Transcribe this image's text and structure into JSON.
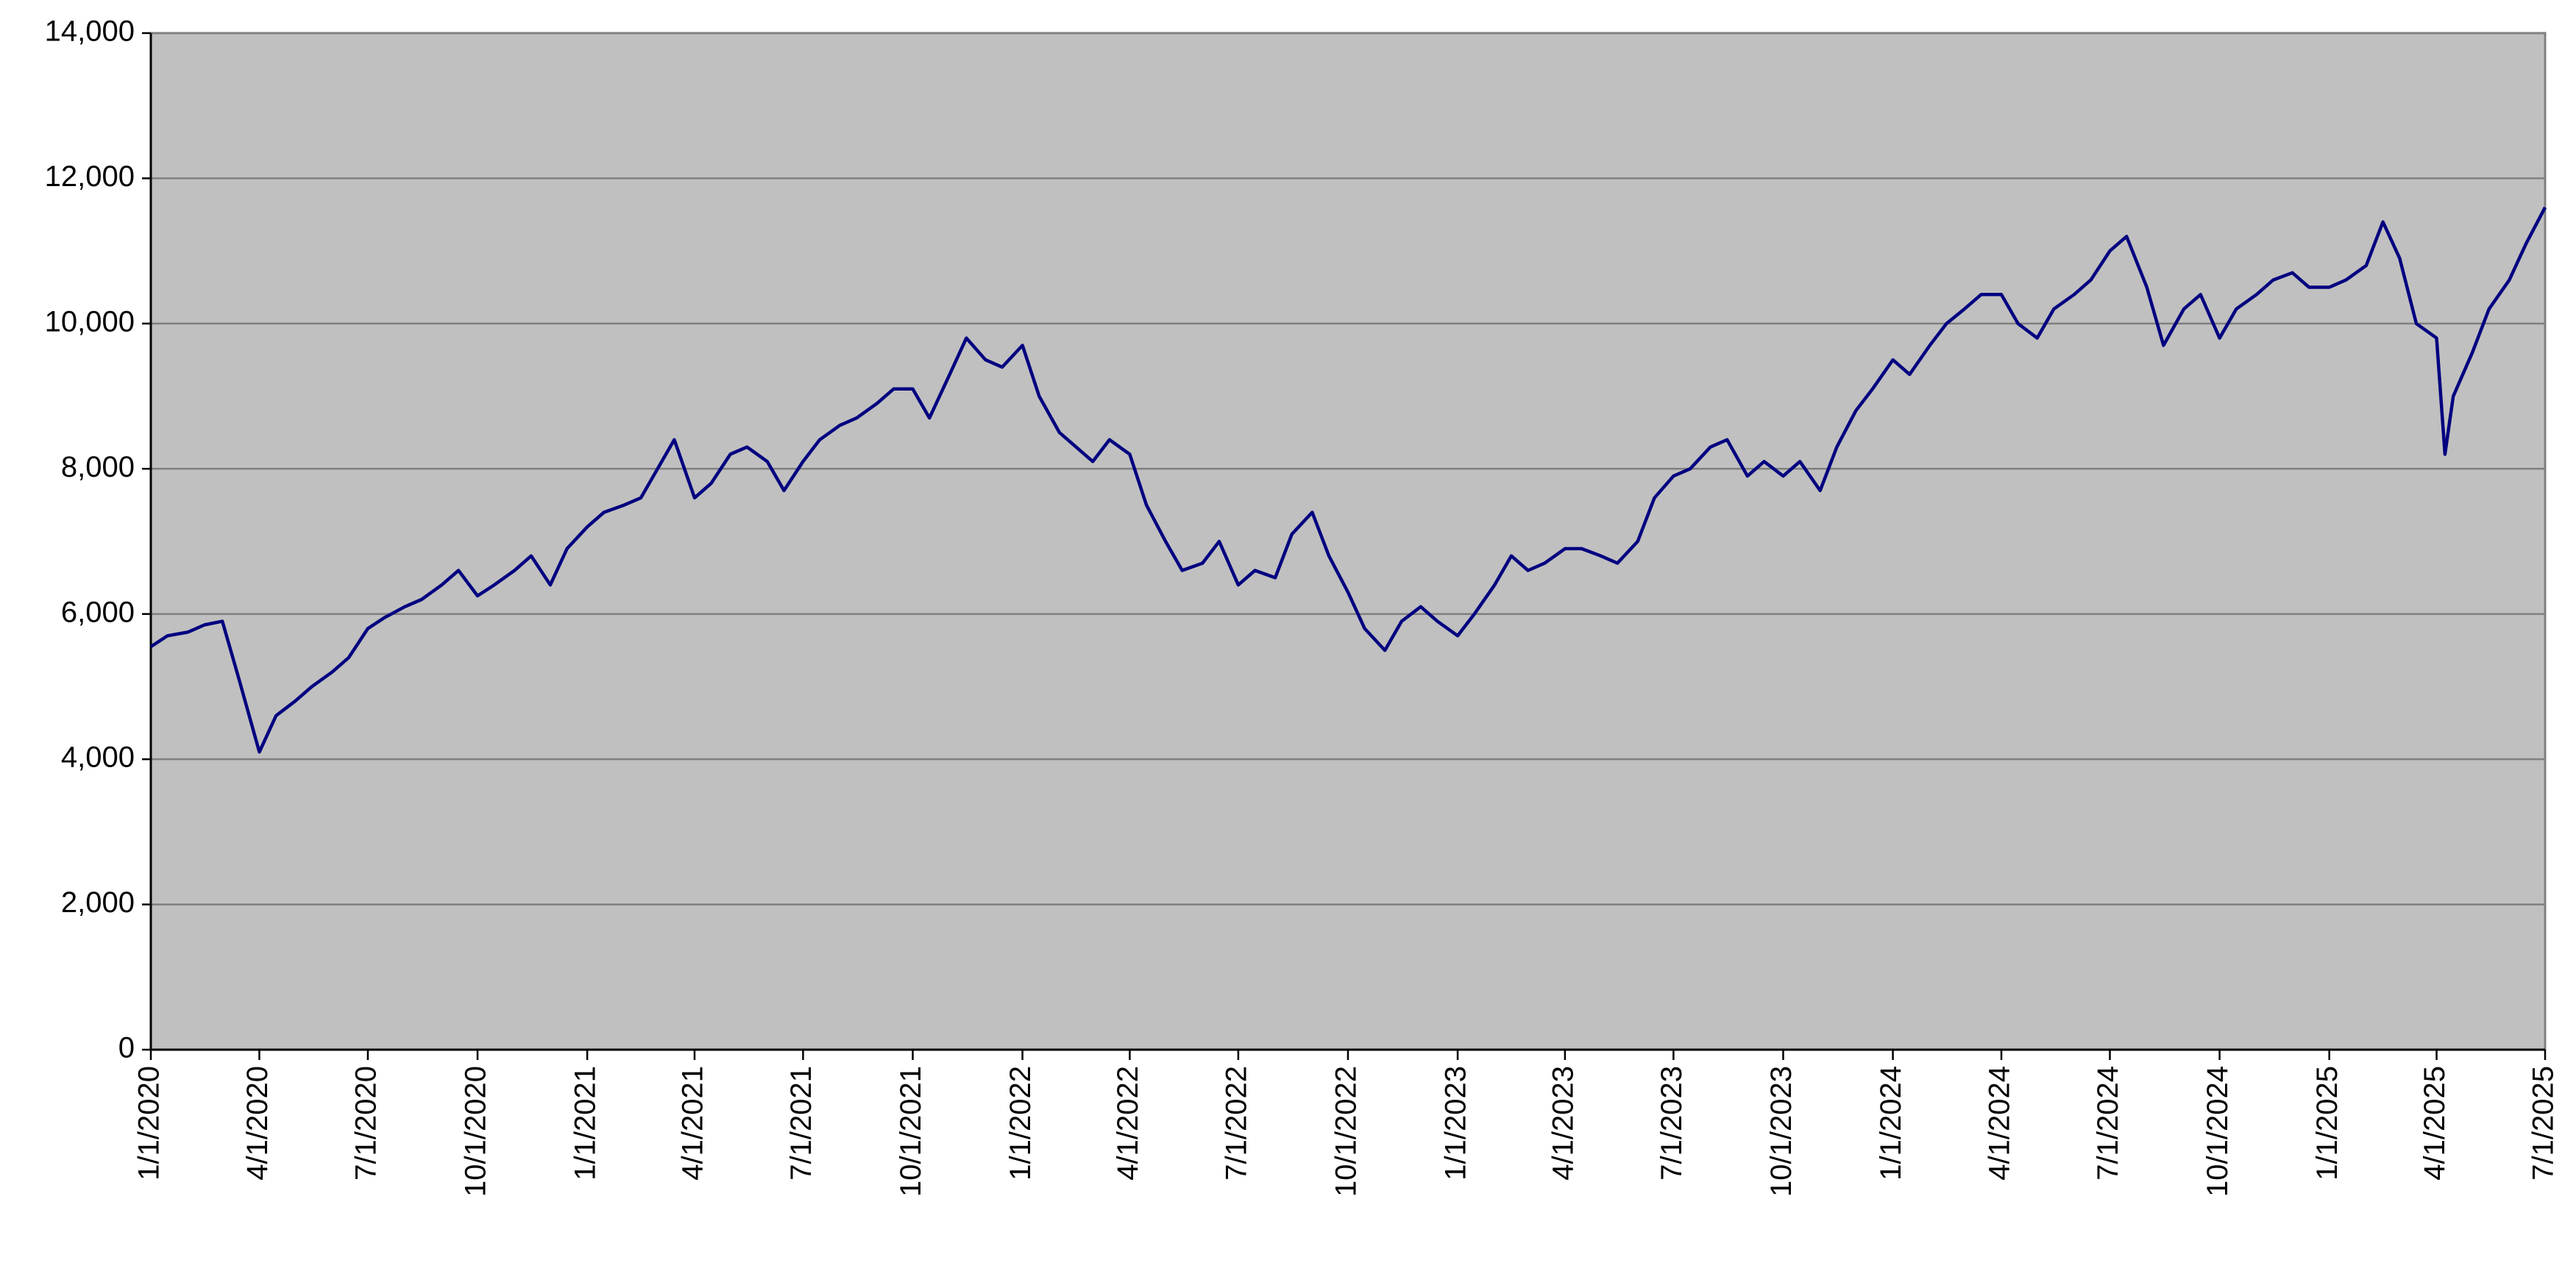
{
  "chart_data": {
    "type": "line",
    "x": [
      "1/1/2020",
      "1/15/2020",
      "2/1/2020",
      "2/15/2020",
      "3/1/2020",
      "3/15/2020",
      "4/1/2020",
      "4/15/2020",
      "5/1/2020",
      "5/15/2020",
      "6/1/2020",
      "6/15/2020",
      "7/1/2020",
      "7/15/2020",
      "8/1/2020",
      "8/15/2020",
      "9/1/2020",
      "9/15/2020",
      "10/1/2020",
      "10/15/2020",
      "11/1/2020",
      "11/15/2020",
      "12/1/2020",
      "12/15/2020",
      "1/1/2021",
      "1/15/2021",
      "2/1/2021",
      "2/15/2021",
      "3/1/2021",
      "3/15/2021",
      "4/1/2021",
      "4/15/2021",
      "5/1/2021",
      "5/15/2021",
      "6/1/2021",
      "6/15/2021",
      "7/1/2021",
      "7/15/2021",
      "8/1/2021",
      "8/15/2021",
      "9/1/2021",
      "9/15/2021",
      "10/1/2021",
      "10/15/2021",
      "11/1/2021",
      "11/15/2021",
      "12/1/2021",
      "12/15/2021",
      "1/1/2022",
      "1/15/2022",
      "2/1/2022",
      "2/15/2022",
      "3/1/2022",
      "3/15/2022",
      "4/1/2022",
      "4/15/2022",
      "5/1/2022",
      "5/15/2022",
      "6/1/2022",
      "6/15/2022",
      "7/1/2022",
      "7/15/2022",
      "8/1/2022",
      "8/15/2022",
      "9/1/2022",
      "9/15/2022",
      "10/1/2022",
      "10/15/2022",
      "11/1/2022",
      "11/15/2022",
      "12/1/2022",
      "12/15/2022",
      "1/1/2023",
      "1/15/2023",
      "2/1/2023",
      "2/15/2023",
      "3/1/2023",
      "3/15/2023",
      "4/1/2023",
      "4/15/2023",
      "5/1/2023",
      "5/15/2023",
      "6/1/2023",
      "6/15/2023",
      "7/1/2023",
      "7/15/2023",
      "8/1/2023",
      "8/15/2023",
      "9/1/2023",
      "9/15/2023",
      "10/1/2023",
      "10/15/2023",
      "11/1/2023",
      "11/15/2023",
      "12/1/2023",
      "12/15/2023",
      "1/1/2024",
      "1/15/2024",
      "2/1/2024",
      "2/15/2024",
      "3/1/2024",
      "3/15/2024",
      "4/1/2024",
      "4/15/2024",
      "5/1/2024",
      "5/15/2024",
      "6/1/2024",
      "6/15/2024",
      "7/1/2024",
      "7/15/2024",
      "8/1/2024",
      "8/15/2024",
      "9/1/2024",
      "9/15/2024",
      "10/1/2024",
      "10/15/2024",
      "11/1/2024",
      "11/15/2024",
      "12/1/2024",
      "12/15/2024",
      "1/1/2025",
      "1/15/2025",
      "2/1/2025",
      "2/15/2025",
      "3/1/2025",
      "3/15/2025",
      "4/1/2025",
      "4/8/2025",
      "4/15/2025",
      "5/1/2025",
      "5/15/2025",
      "6/1/2025",
      "6/15/2025",
      "7/1/2025"
    ],
    "series": [
      {
        "color": "#000080",
        "values": [
          5550,
          5700,
          5750,
          5850,
          5900,
          5100,
          4100,
          4600,
          4800,
          5000,
          5200,
          5400,
          5800,
          5950,
          6100,
          6200,
          6400,
          6600,
          6250,
          6400,
          6600,
          6800,
          6400,
          6900,
          7200,
          7400,
          7500,
          7600,
          8000,
          8400,
          7600,
          7800,
          8200,
          8300,
          8100,
          7700,
          8100,
          8400,
          8600,
          8700,
          8900,
          9100,
          9100,
          8700,
          9300,
          9800,
          9500,
          9400,
          9700,
          9000,
          8500,
          8300,
          8100,
          8400,
          8200,
          7500,
          7000,
          6600,
          6700,
          7000,
          6400,
          6600,
          6500,
          7100,
          7400,
          6800,
          6300,
          5800,
          5500,
          5900,
          6100,
          5900,
          5700,
          6000,
          6400,
          6800,
          6600,
          6700,
          6900,
          6900,
          6800,
          6700,
          7000,
          7600,
          7900,
          8000,
          8300,
          8400,
          7900,
          8100,
          7900,
          8100,
          7700,
          8300,
          8800,
          9100,
          9500,
          9300,
          9700,
          10000,
          10200,
          10400,
          10400,
          10000,
          9800,
          10200,
          10400,
          10600,
          11000,
          11200,
          10500,
          9700,
          10200,
          10400,
          9800,
          10200,
          10400,
          10600,
          10700,
          10500,
          10500,
          10600,
          10800,
          11400,
          10900,
          10000,
          9800,
          8200,
          9000,
          9600,
          10200,
          10600,
          11100,
          11600
        ]
      }
    ],
    "xlim": [
      "1/1/2020",
      "7/1/2025"
    ],
    "xticks": [
      "1/1/2020",
      "4/1/2020",
      "7/1/2020",
      "10/1/2020",
      "1/1/2021",
      "4/1/2021",
      "7/1/2021",
      "10/1/2021",
      "1/1/2022",
      "4/1/2022",
      "7/1/2022",
      "10/1/2022",
      "1/1/2023",
      "4/1/2023",
      "7/1/2023",
      "10/1/2023",
      "1/1/2024",
      "4/1/2024",
      "7/1/2024",
      "10/1/2024",
      "1/1/2025",
      "4/1/2025",
      "7/1/2025"
    ],
    "ylim": [
      0,
      14000
    ],
    "yticks": [
      0,
      {
        "value": 2000,
        "label": "2,000"
      },
      {
        "value": 4000,
        "label": "4,000"
      },
      {
        "value": 6000,
        "label": "6,000"
      },
      {
        "value": 8000,
        "label": "8,000"
      },
      {
        "value": 10000,
        "label": "10,000"
      },
      {
        "value": 12000,
        "label": "12,000"
      },
      {
        "value": 14000,
        "label": "14,000"
      }
    ],
    "grid": true
  }
}
